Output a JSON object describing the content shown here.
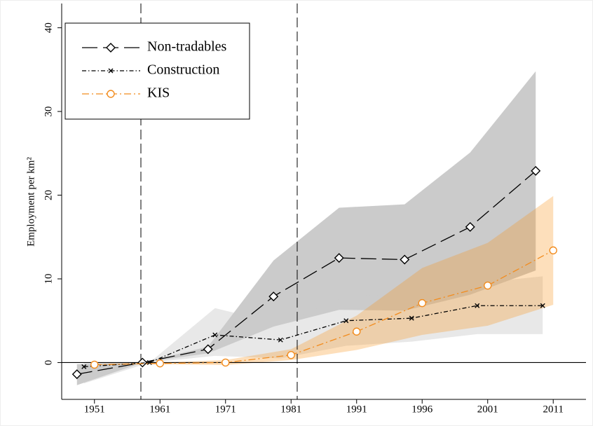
{
  "chart_data": {
    "type": "line",
    "ylabel": "Employment per km²",
    "categories": [
      "1951",
      "1961",
      "1971",
      "1981",
      "1991",
      "1996",
      "2001",
      "2011"
    ],
    "ylim": [
      -4.4,
      42.9
    ],
    "yticks": [
      0,
      10,
      20,
      30,
      40
    ],
    "legend": "upper left",
    "series": [
      {
        "name": "Non-tradables",
        "color": "#000000",
        "band_color": "rgba(140,140,140,0.45)",
        "marker": "diamond",
        "dash": "22 8",
        "values": [
          -1.4,
          0,
          1.6,
          7.9,
          12.5,
          12.3,
          16.2,
          22.9
        ],
        "lower": [
          -2.7,
          0,
          1.1,
          4.3,
          6.3,
          6.2,
          8.1,
          11.0
        ],
        "upper": [
          -0.2,
          0,
          1.9,
          12.2,
          18.5,
          18.9,
          25.1,
          34.8
        ]
      },
      {
        "name": "Construction",
        "color": "#000000",
        "band_color": "rgba(205,205,205,0.45)",
        "marker": "x",
        "dash": "6 3 1.5 3",
        "values": [
          -0.5,
          0,
          3.3,
          2.7,
          5.0,
          5.3,
          6.8,
          6.8
        ],
        "lower": [
          -2.5,
          0,
          0.8,
          0.5,
          2.0,
          2.5,
          3.4,
          3.4
        ],
        "upper": [
          0,
          0,
          6.5,
          4.6,
          7.9,
          8.2,
          9.5,
          10.3
        ]
      },
      {
        "name": "KIS",
        "color": "#f28c1e",
        "band_color": "rgba(247,148,29,0.3)",
        "marker": "circle",
        "dash": "10 4 2 4",
        "values": [
          -0.25,
          -0.1,
          0,
          0.9,
          3.7,
          7.1,
          9.2,
          13.4
        ],
        "lower": [
          -0.3,
          -0.2,
          -0.3,
          0.3,
          1.5,
          3.3,
          4.4,
          6.9
        ],
        "upper": [
          -0.2,
          0,
          0.3,
          1.6,
          5.6,
          11.3,
          14.3,
          19.9
        ]
      }
    ]
  }
}
